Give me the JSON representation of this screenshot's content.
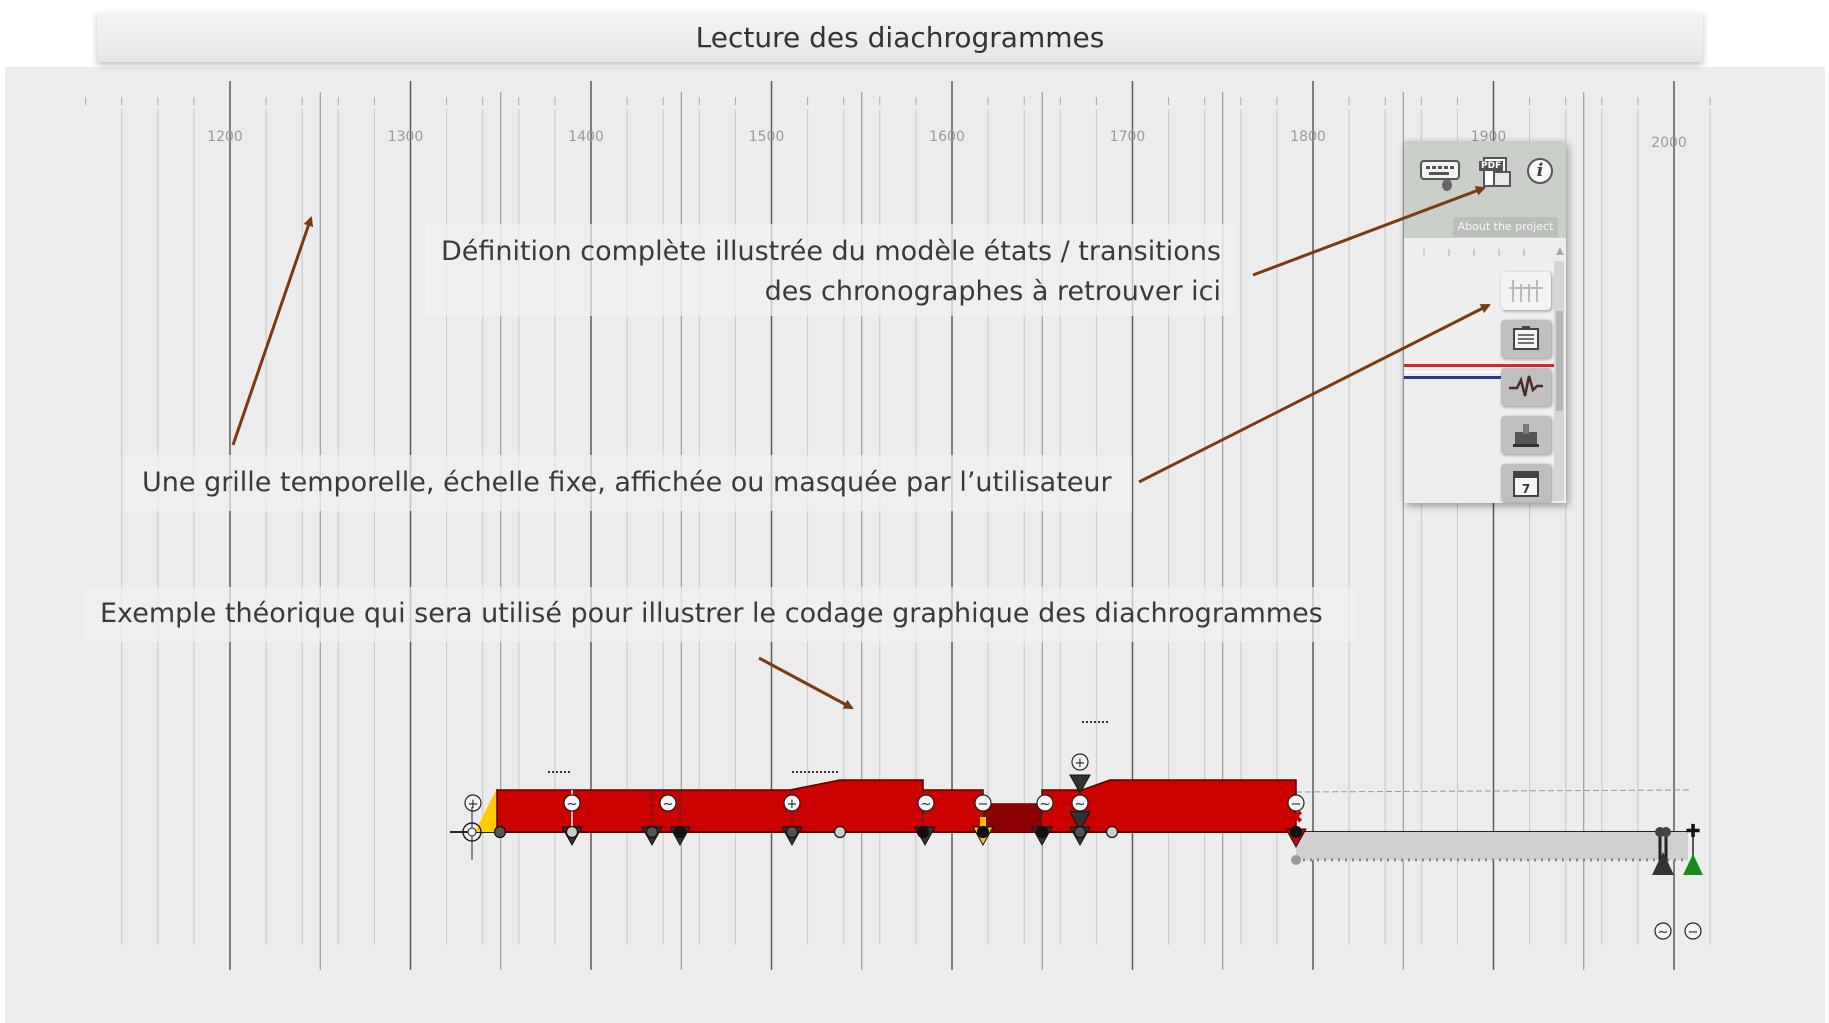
{
  "title": "Lecture des diachrogrammes",
  "timeline": {
    "year_labels": [
      "1200",
      "1300",
      "1400",
      "1500",
      "1600",
      "1700",
      "1800",
      "1900",
      "2000"
    ]
  },
  "notes": {
    "definition_line1": "Définition complète illustrée du modèle états / transitions",
    "definition_line2": "des chronographes à retrouver ici",
    "grid": "Une grille temporelle, échelle fixe, affichée ou masquée par l’utilisateur",
    "example": "Exemple théorique qui sera utilisé pour illustrer le codage graphique des diachrogrammes"
  },
  "toolpanel": {
    "about_label": "About the project",
    "pdf_label": "PDF",
    "info_label": "i",
    "calendar_label": "7"
  },
  "markers": {
    "plus": "+",
    "minus": "−",
    "tilde": "~"
  },
  "colors": {
    "state_red": "#cc0000",
    "state_red_dark": "#8b0000",
    "start_yellow": "#ffcc00",
    "arrow_brown": "#7b3b12",
    "end_green": "#1a8a1a",
    "event_yellow": "#f5c400",
    "event_red": "#cc0000"
  },
  "icons": [
    "keyboard-icon",
    "pdf-icon",
    "info-icon",
    "grid-toggle-icon",
    "notes-icon",
    "chart-icon",
    "figure-icon",
    "calendar-icon"
  ]
}
